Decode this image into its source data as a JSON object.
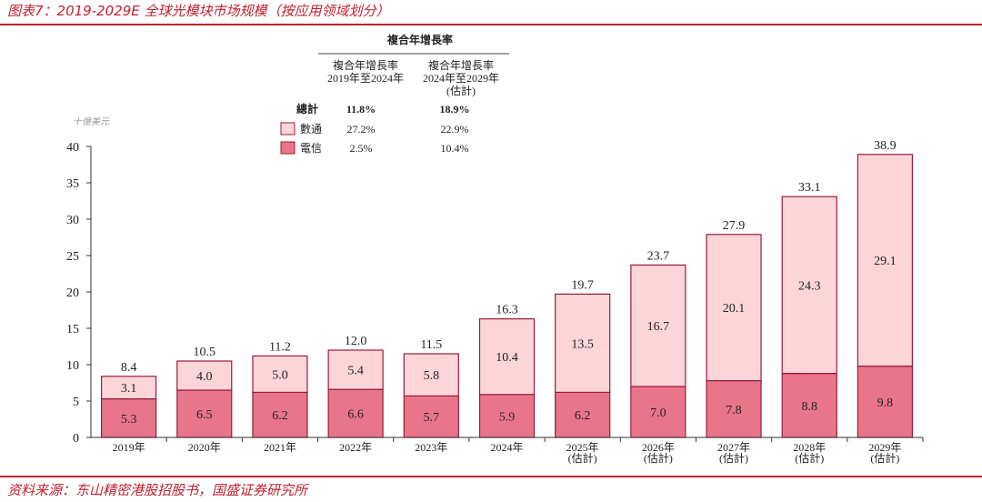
{
  "figure": {
    "title": "图表7：2019-2029E 全球光模块市场规模（按应用领域划分）",
    "source": "资料来源：东山精密港股招股书，国盛证券研究所"
  },
  "cagr_table": {
    "header": "複合年增長率",
    "col1": [
      "複合年增長率",
      "2019年至2024年"
    ],
    "col2": [
      "複合年增長率",
      "2024年至2029年",
      "(估計)"
    ],
    "rows": [
      {
        "label": "總計",
        "v1": "11.8%",
        "v2": "18.9%",
        "bold": true
      },
      {
        "label": "數通",
        "v1": "27.2%",
        "v2": "22.9%",
        "swatch": "#fcd5d8"
      },
      {
        "label": "電信",
        "v1": "2.5%",
        "v2": "10.4%",
        "swatch": "#e8758a"
      }
    ]
  },
  "chart_data": {
    "type": "bar",
    "stacked": true,
    "unit_label": "十億美元",
    "categories": [
      [
        "2019年"
      ],
      [
        "2020年"
      ],
      [
        "2021年"
      ],
      [
        "2022年"
      ],
      [
        "2023年"
      ],
      [
        "2024年"
      ],
      [
        "2025年",
        "(估計)"
      ],
      [
        "2026年",
        "(估計)"
      ],
      [
        "2027年",
        "(估計)"
      ],
      [
        "2028年",
        "(估計)"
      ],
      [
        "2029年",
        "(估計)"
      ]
    ],
    "series": [
      {
        "name": "電信",
        "color": "#e8758a",
        "values": [
          5.3,
          6.5,
          6.2,
          6.6,
          5.7,
          5.9,
          6.2,
          7.0,
          7.8,
          8.8,
          9.8
        ],
        "labels": [
          "5.3",
          "6.5",
          "6.2",
          "6.6",
          "5.7",
          "5.9",
          "6.2",
          "7.0",
          "7.8",
          "8.8",
          "9.8"
        ]
      },
      {
        "name": "數通",
        "color": "#fcd5d8",
        "values": [
          3.1,
          4.0,
          5.0,
          5.4,
          5.8,
          10.4,
          13.5,
          16.7,
          20.1,
          24.3,
          29.1
        ],
        "labels": [
          "3.1",
          "4.0",
          "5.0",
          "5.4",
          "5.8",
          "10.4",
          "13.5",
          "16.7",
          "20.1",
          "24.3",
          "29.1"
        ]
      }
    ],
    "totals": [
      "8.4",
      "10.5",
      "11.2",
      "12.0",
      "11.5",
      "16.3",
      "19.7",
      "23.7",
      "27.9",
      "33.1",
      "38.9"
    ],
    "ylim": [
      0,
      40
    ],
    "yticks": [
      0,
      5,
      10,
      15,
      20,
      25,
      30,
      35,
      40
    ],
    "grid": false,
    "bar_edge_color": "#9b1b3a"
  }
}
